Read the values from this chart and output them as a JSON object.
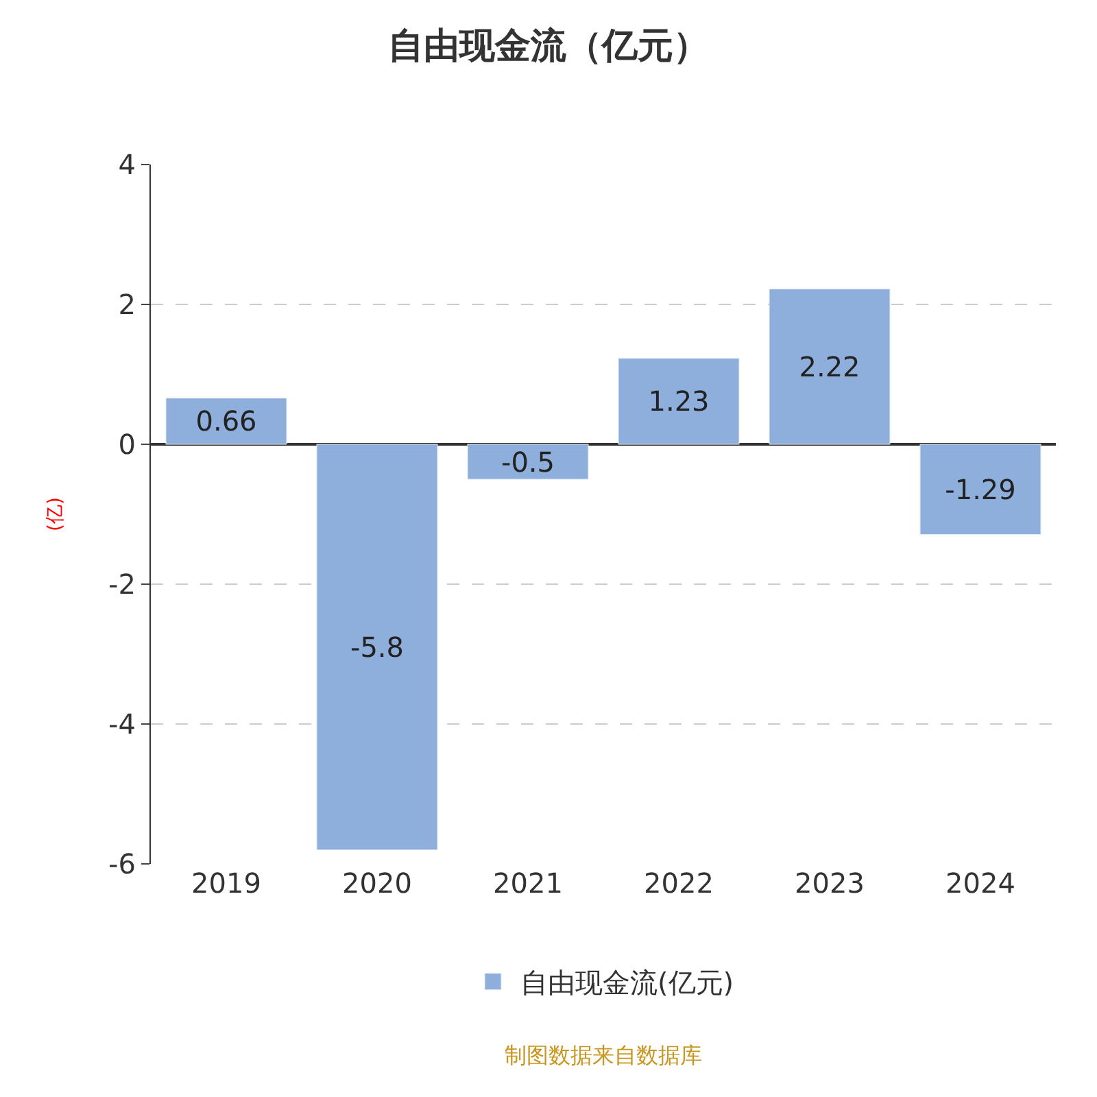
{
  "chart_data": {
    "type": "bar",
    "title": "自由现金流（亿元）",
    "ylabel": "(亿)",
    "categories": [
      "2019",
      "2020",
      "2021",
      "2022",
      "2023",
      "2024"
    ],
    "series": [
      {
        "name": "自由现金流(亿元)",
        "color": "#8eaedb",
        "values": [
          0.66,
          -5.8,
          -0.5,
          1.23,
          2.22,
          -1.29
        ]
      }
    ],
    "ylim": [
      -6,
      4
    ],
    "yticks": [
      -6,
      -4,
      -2,
      0,
      2,
      4
    ],
    "grid": "y",
    "legend": "bottom",
    "data_labels": true,
    "annotations": [
      "制图数据来自数据库"
    ]
  }
}
